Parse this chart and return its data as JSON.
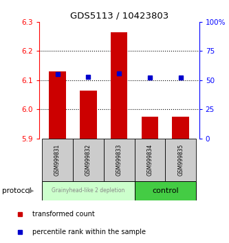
{
  "title": "GDS5113 / 10423803",
  "samples": [
    "GSM999831",
    "GSM999832",
    "GSM999833",
    "GSM999834",
    "GSM999835"
  ],
  "bar_values": [
    6.13,
    6.065,
    6.265,
    5.975,
    5.975
  ],
  "percentile_values": [
    55,
    53,
    56,
    52,
    52
  ],
  "ylim_left": [
    5.9,
    6.3
  ],
  "ylim_right": [
    0,
    100
  ],
  "yticks_left": [
    5.9,
    6.0,
    6.1,
    6.2,
    6.3
  ],
  "yticks_right": [
    0,
    25,
    50,
    75,
    100
  ],
  "ytick_labels_right": [
    "0",
    "25",
    "50",
    "75",
    "100%"
  ],
  "bar_color": "#cc0000",
  "marker_color": "#0000cc",
  "group1_label": "Grainyhead-like 2 depletion",
  "group2_label": "control",
  "group1_color": "#ccffcc",
  "group2_color": "#44cc44",
  "group1_indices": [
    0,
    1,
    2
  ],
  "group2_indices": [
    3,
    4
  ],
  "protocol_label": "protocol",
  "legend_bar_label": "transformed count",
  "legend_marker_label": "percentile rank within the sample",
  "background_color": "#ffffff",
  "grid_lines": [
    6.0,
    6.1,
    6.2
  ],
  "label_box_color": "#cccccc",
  "group1_text_color": "#888888",
  "group2_text_color": "#000000"
}
